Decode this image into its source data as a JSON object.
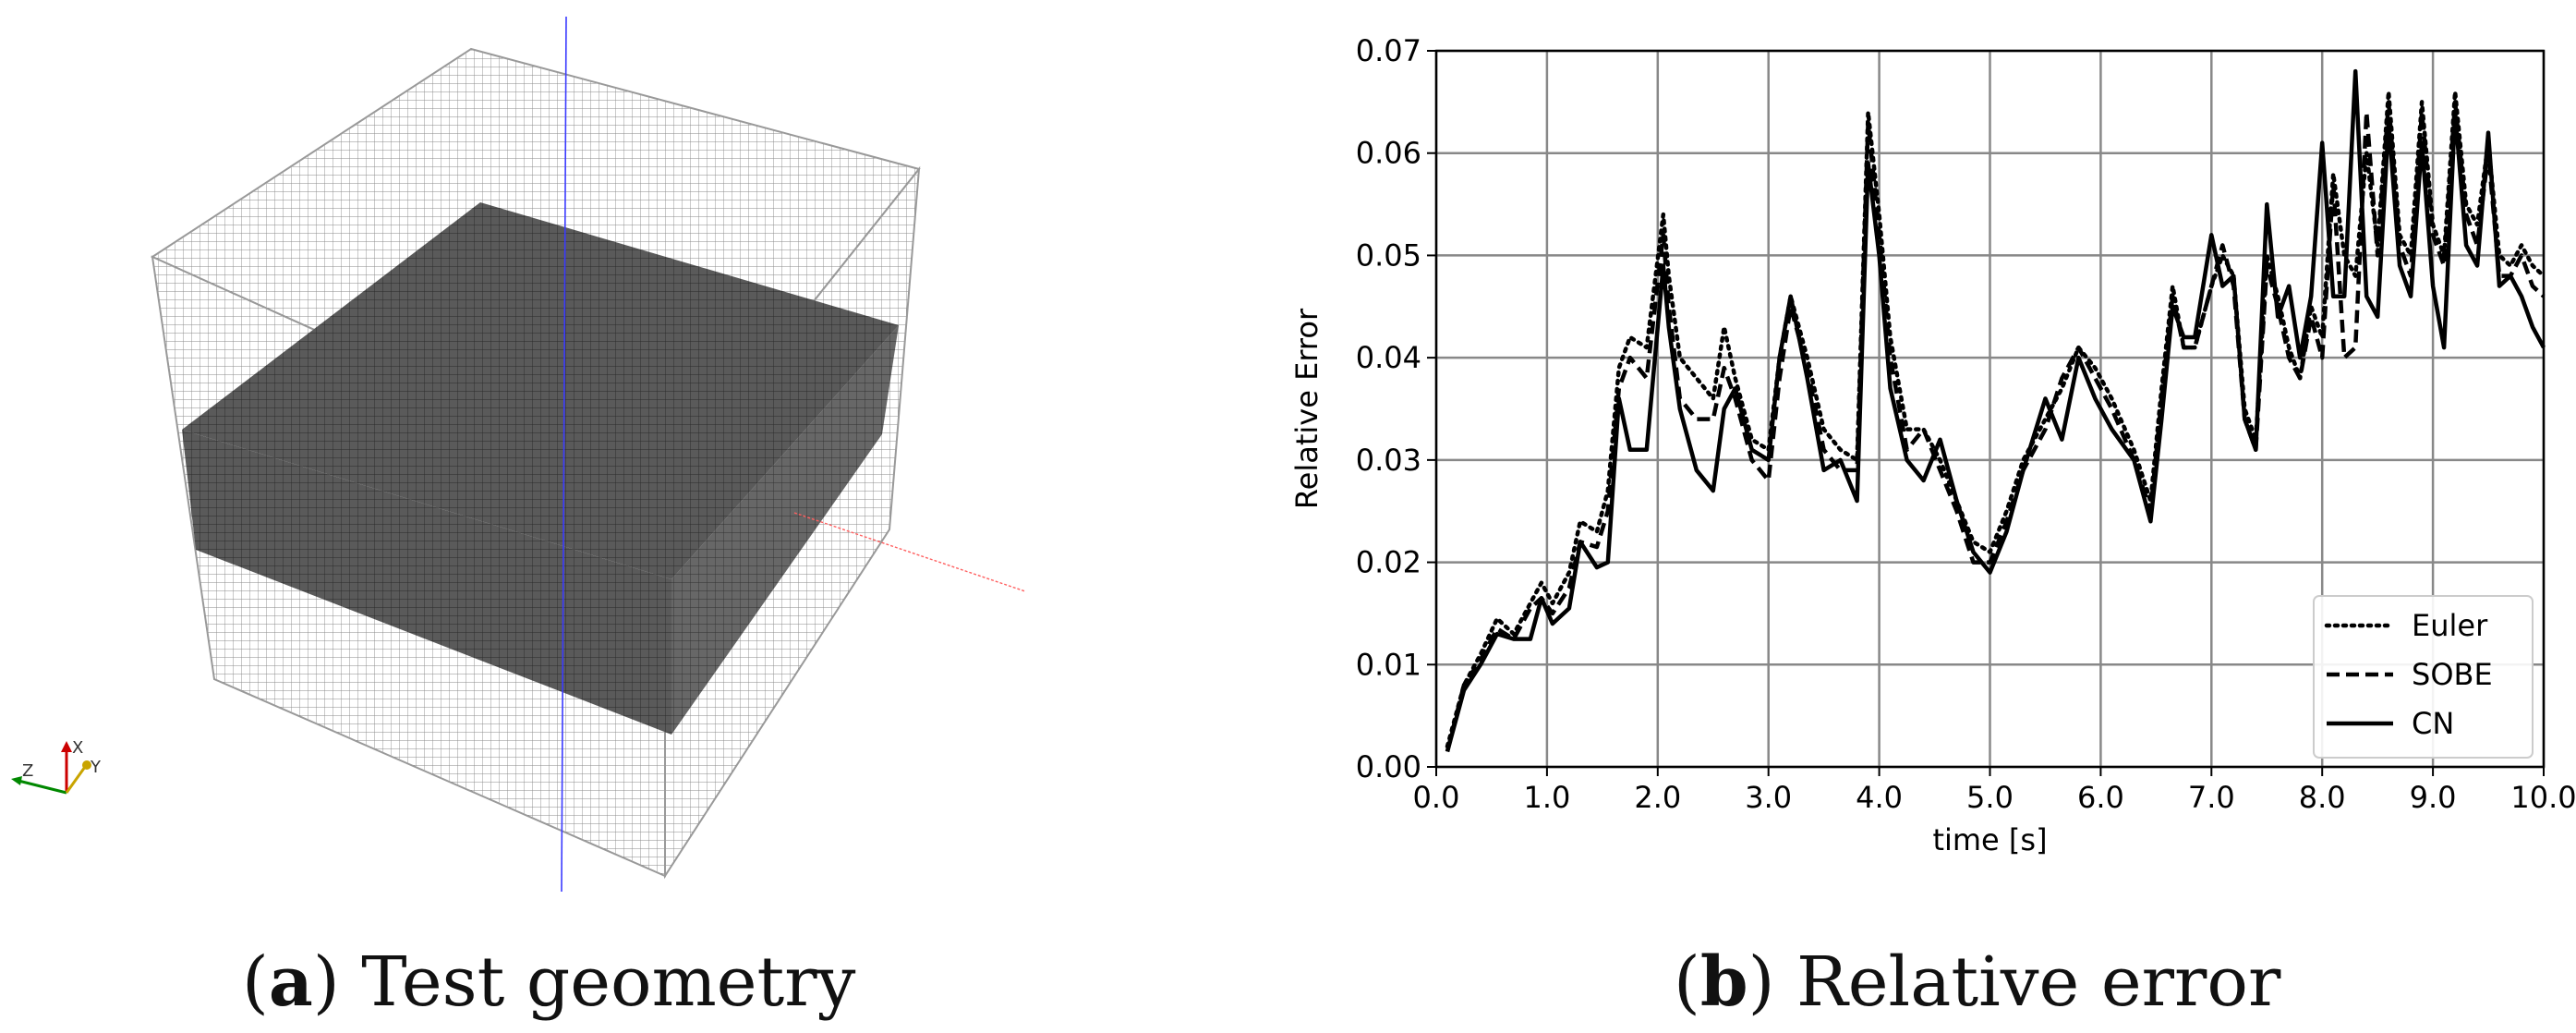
{
  "captions": {
    "a_letter": "a",
    "a_text": "Test geometry",
    "b_letter": "b",
    "b_text": "Relative error"
  },
  "geometry": {
    "axis_labels": {
      "x": "X",
      "y": "Y",
      "z": "Z"
    }
  },
  "colors": {
    "mesh_line": "#777777",
    "dark_slab": "#555555",
    "axis_blue": "#3a3aff",
    "axis_red": "#ff6060"
  },
  "chart_data": {
    "type": "line",
    "title": "",
    "xlabel": "time [s]",
    "ylabel": "Relative Error",
    "xlim": [
      0.0,
      10.0
    ],
    "ylim": [
      0.0,
      0.07
    ],
    "grid": true,
    "legend_position": "lower-right",
    "xticks": [
      0,
      1,
      2,
      3,
      4,
      5,
      6,
      7,
      8,
      9,
      10
    ],
    "xtick_labels": [
      "0.0",
      "1.0",
      "2.0",
      "3.0",
      "4.0",
      "5.0",
      "6.0",
      "7.0",
      "8.0",
      "9.0",
      "10.0"
    ],
    "yticks": [
      0,
      0.01,
      0.02,
      0.03,
      0.04,
      0.05,
      0.06,
      0.07
    ],
    "ytick_labels": [
      "0.00",
      "0.01",
      "0.02",
      "0.03",
      "0.04",
      "0.05",
      "0.06",
      "0.07"
    ],
    "series": [
      {
        "name": "Euler",
        "style": "dotted",
        "x": [
          0.1,
          0.25,
          0.4,
          0.55,
          0.7,
          0.85,
          0.95,
          1.05,
          1.2,
          1.3,
          1.45,
          1.55,
          1.65,
          1.75,
          1.9,
          2.05,
          2.1,
          2.2,
          2.35,
          2.5,
          2.6,
          2.7,
          2.85,
          3.0,
          3.1,
          3.2,
          3.35,
          3.5,
          3.65,
          3.8,
          3.9,
          4.0,
          4.1,
          4.25,
          4.4,
          4.55,
          4.7,
          4.85,
          5.0,
          5.15,
          5.3,
          5.5,
          5.65,
          5.8,
          5.95,
          6.1,
          6.3,
          6.45,
          6.55,
          6.65,
          6.75,
          6.85,
          7.0,
          7.1,
          7.2,
          7.3,
          7.4,
          7.5,
          7.6,
          7.7,
          7.8,
          7.9,
          8.0,
          8.1,
          8.2,
          8.3,
          8.4,
          8.5,
          8.6,
          8.7,
          8.8,
          8.9,
          9.0,
          9.1,
          9.2,
          9.3,
          9.4,
          9.5,
          9.6,
          9.7,
          9.8,
          9.9,
          10.0
        ],
        "y": [
          0.002,
          0.008,
          0.011,
          0.0145,
          0.013,
          0.016,
          0.018,
          0.016,
          0.019,
          0.024,
          0.023,
          0.027,
          0.039,
          0.042,
          0.041,
          0.054,
          0.048,
          0.04,
          0.038,
          0.036,
          0.043,
          0.038,
          0.032,
          0.031,
          0.04,
          0.046,
          0.04,
          0.033,
          0.031,
          0.03,
          0.064,
          0.054,
          0.042,
          0.033,
          0.033,
          0.03,
          0.026,
          0.022,
          0.021,
          0.025,
          0.03,
          0.034,
          0.037,
          0.041,
          0.039,
          0.036,
          0.031,
          0.026,
          0.037,
          0.047,
          0.041,
          0.041,
          0.047,
          0.05,
          0.048,
          0.035,
          0.032,
          0.05,
          0.046,
          0.041,
          0.038,
          0.045,
          0.042,
          0.058,
          0.05,
          0.048,
          0.06,
          0.051,
          0.066,
          0.052,
          0.05,
          0.065,
          0.053,
          0.05,
          0.066,
          0.055,
          0.053,
          0.061,
          0.05,
          0.049,
          0.051,
          0.049,
          0.048
        ]
      },
      {
        "name": "SOBE",
        "style": "dashed",
        "x": [
          0.1,
          0.25,
          0.4,
          0.55,
          0.7,
          0.85,
          0.95,
          1.05,
          1.2,
          1.3,
          1.45,
          1.55,
          1.65,
          1.75,
          1.9,
          2.05,
          2.1,
          2.2,
          2.35,
          2.5,
          2.6,
          2.7,
          2.85,
          3.0,
          3.1,
          3.2,
          3.35,
          3.5,
          3.65,
          3.8,
          3.9,
          4.0,
          4.1,
          4.25,
          4.4,
          4.55,
          4.7,
          4.85,
          5.0,
          5.15,
          5.3,
          5.5,
          5.65,
          5.8,
          5.95,
          6.1,
          6.3,
          6.45,
          6.55,
          6.65,
          6.75,
          6.85,
          7.0,
          7.1,
          7.2,
          7.3,
          7.4,
          7.5,
          7.6,
          7.7,
          7.8,
          7.9,
          8.0,
          8.1,
          8.2,
          8.3,
          8.4,
          8.5,
          8.6,
          8.7,
          8.8,
          8.9,
          9.0,
          9.1,
          9.2,
          9.3,
          9.4,
          9.5,
          9.6,
          9.7,
          9.8,
          9.9,
          10.0
        ],
        "y": [
          0.0015,
          0.008,
          0.0105,
          0.0135,
          0.0125,
          0.0155,
          0.0165,
          0.015,
          0.0175,
          0.022,
          0.0215,
          0.025,
          0.037,
          0.04,
          0.038,
          0.052,
          0.045,
          0.036,
          0.034,
          0.034,
          0.039,
          0.036,
          0.03,
          0.028,
          0.038,
          0.045,
          0.039,
          0.031,
          0.029,
          0.029,
          0.063,
          0.052,
          0.04,
          0.031,
          0.033,
          0.029,
          0.025,
          0.02,
          0.02,
          0.024,
          0.029,
          0.033,
          0.038,
          0.041,
          0.038,
          0.035,
          0.03,
          0.025,
          0.036,
          0.046,
          0.041,
          0.041,
          0.047,
          0.051,
          0.047,
          0.034,
          0.031,
          0.049,
          0.045,
          0.04,
          0.038,
          0.044,
          0.04,
          0.057,
          0.04,
          0.041,
          0.064,
          0.05,
          0.065,
          0.051,
          0.048,
          0.064,
          0.052,
          0.049,
          0.065,
          0.054,
          0.051,
          0.06,
          0.048,
          0.048,
          0.05,
          0.047,
          0.046
        ]
      },
      {
        "name": "CN",
        "style": "solid",
        "x": [
          0.1,
          0.25,
          0.4,
          0.55,
          0.7,
          0.85,
          0.95,
          1.05,
          1.2,
          1.3,
          1.45,
          1.55,
          1.65,
          1.75,
          1.9,
          2.05,
          2.1,
          2.2,
          2.35,
          2.5,
          2.6,
          2.7,
          2.85,
          3.0,
          3.1,
          3.2,
          3.35,
          3.5,
          3.65,
          3.8,
          3.9,
          4.0,
          4.1,
          4.25,
          4.4,
          4.55,
          4.7,
          4.85,
          5.0,
          5.15,
          5.3,
          5.5,
          5.65,
          5.8,
          5.95,
          6.1,
          6.3,
          6.45,
          6.55,
          6.65,
          6.75,
          6.85,
          7.0,
          7.1,
          7.2,
          7.3,
          7.4,
          7.5,
          7.6,
          7.7,
          7.8,
          7.9,
          8.0,
          8.1,
          8.2,
          8.3,
          8.4,
          8.5,
          8.6,
          8.7,
          8.8,
          8.9,
          9.0,
          9.1,
          9.2,
          9.3,
          9.4,
          9.5,
          9.6,
          9.7,
          9.8,
          9.9,
          10.0
        ],
        "y": [
          0.0015,
          0.0075,
          0.01,
          0.013,
          0.0125,
          0.0125,
          0.0165,
          0.014,
          0.0155,
          0.022,
          0.0195,
          0.02,
          0.036,
          0.031,
          0.031,
          0.049,
          0.043,
          0.035,
          0.029,
          0.027,
          0.035,
          0.037,
          0.031,
          0.03,
          0.04,
          0.046,
          0.038,
          0.029,
          0.03,
          0.026,
          0.059,
          0.05,
          0.037,
          0.03,
          0.028,
          0.032,
          0.026,
          0.021,
          0.019,
          0.023,
          0.029,
          0.036,
          0.032,
          0.04,
          0.036,
          0.033,
          0.03,
          0.024,
          0.034,
          0.045,
          0.042,
          0.042,
          0.052,
          0.047,
          0.048,
          0.034,
          0.031,
          0.055,
          0.044,
          0.047,
          0.04,
          0.046,
          0.061,
          0.046,
          0.046,
          0.068,
          0.046,
          0.044,
          0.063,
          0.049,
          0.046,
          0.061,
          0.047,
          0.041,
          0.064,
          0.051,
          0.049,
          0.062,
          0.047,
          0.048,
          0.046,
          0.043,
          0.041
        ]
      }
    ]
  }
}
